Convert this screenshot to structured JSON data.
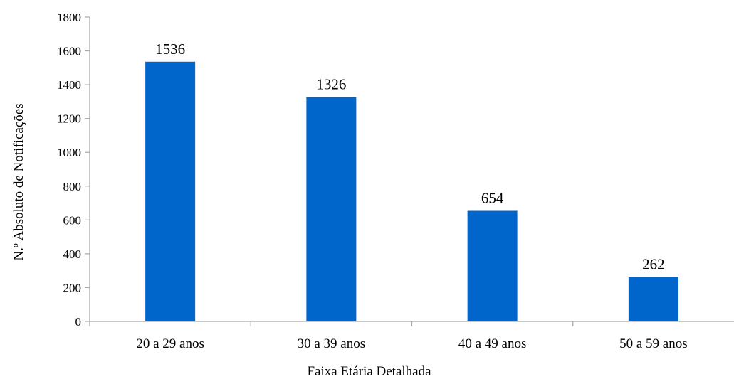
{
  "chart_data": {
    "type": "bar",
    "categories": [
      "20 a 29 anos",
      "30 a 39 anos",
      "40 a 49 anos",
      "50 a 59 anos"
    ],
    "values": [
      1536,
      1326,
      654,
      262
    ],
    "data_labels": [
      "1536",
      "1326",
      "654",
      "262"
    ],
    "title": "",
    "xlabel": "Faixa Etária Detalhada",
    "ylabel": "N.º Absoluto de Notificações",
    "ylim": [
      0,
      1800
    ],
    "yticks": [
      0,
      200,
      400,
      600,
      800,
      1000,
      1200,
      1400,
      1600,
      1800
    ],
    "ytick_labels": [
      "0",
      "200",
      "400",
      "600",
      "800",
      "1000",
      "1200",
      "1400",
      "1600",
      "1800"
    ],
    "grid": false,
    "legend": "none",
    "colors": {
      "bar": "#0066CC",
      "axis": "#A6A6A6",
      "text": "#000000"
    }
  }
}
